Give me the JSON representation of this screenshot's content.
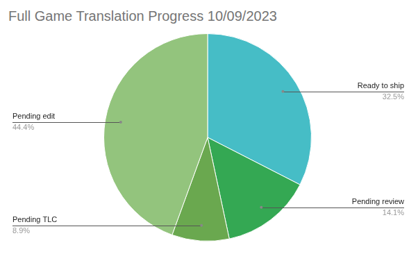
{
  "chart_data": {
    "type": "pie",
    "title": "Full Game Translation Progress 10/09/2023",
    "categories": [
      "Ready to ship",
      "Pending review",
      "Pending TLC",
      "Pending edit"
    ],
    "values": [
      32.5,
      14.1,
      8.9,
      44.4
    ],
    "value_labels": [
      "32.5%",
      "14.1%",
      "8.9%",
      "44.4%"
    ],
    "colors": [
      "#46bdc6",
      "#34a853",
      "#6aa84f",
      "#93c47d"
    ],
    "data_labels": true
  }
}
